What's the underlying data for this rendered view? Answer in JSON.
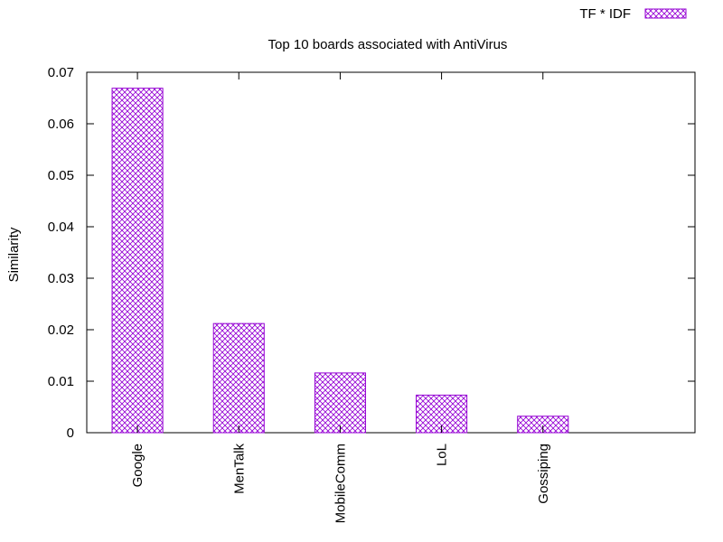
{
  "chart_data": {
    "type": "bar",
    "title": "Top 10 boards associated with AntiVirus",
    "xlabel": "",
    "ylabel": "Similarity",
    "categories": [
      "Google",
      "MenTalk",
      "MobileComm",
      "LoL",
      "Gossiping"
    ],
    "series": [
      {
        "name": "TF * IDF",
        "values": [
          0.0669,
          0.0212,
          0.0116,
          0.0073,
          0.0032
        ]
      }
    ],
    "ylim": [
      0,
      0.07
    ],
    "yticks": [
      "0",
      "0.01",
      "0.02",
      "0.03",
      "0.04",
      "0.05",
      "0.06",
      "0.07"
    ],
    "ytick_values": [
      0,
      0.01,
      0.02,
      0.03,
      0.04,
      0.05,
      0.06,
      0.07
    ],
    "grid": false,
    "legend_position": "top-right",
    "fill_pattern": "crosshatch",
    "bar_color": "#9400d3"
  }
}
